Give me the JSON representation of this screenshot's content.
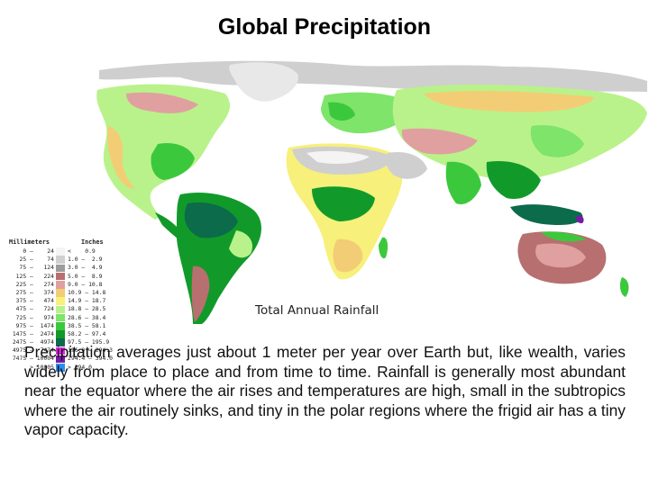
{
  "title": "Global Precipitation",
  "map": {
    "caption": "Total Annual Rainfall",
    "legend": {
      "mm_header": "Millimeters",
      "in_header": "Inches",
      "rows": [
        {
          "mm": "0 –    24",
          "inch": "<    0.9",
          "color": "#f4f4f4"
        },
        {
          "mm": "25 –    74",
          "inch": "1.0 –  2.9",
          "color": "#cfcfcf"
        },
        {
          "mm": "75 –   124",
          "inch": "3.0 –  4.9",
          "color": "#9c9c9c"
        },
        {
          "mm": "125 –   224",
          "inch": "5.0 –  8.9",
          "color": "#b86f6f"
        },
        {
          "mm": "225 –   274",
          "inch": "9.0 – 10.8",
          "color": "#e0a0a0"
        },
        {
          "mm": "275 –   374",
          "inch": "10.9 – 14.8",
          "color": "#f2cd75"
        },
        {
          "mm": "375 –   474",
          "inch": "14.9 – 18.7",
          "color": "#f7f07a"
        },
        {
          "mm": "475 –   724",
          "inch": "18.8 – 28.5",
          "color": "#b9f28a"
        },
        {
          "mm": "725 –   974",
          "inch": "28.6 – 38.4",
          "color": "#7ee46a"
        },
        {
          "mm": "975 –  1474",
          "inch": "38.5 – 58.1",
          "color": "#3cc83c"
        },
        {
          "mm": "1475 –  2474",
          "inch": "58.2 – 97.4",
          "color": "#119a2a"
        },
        {
          "mm": "2475 –  4974",
          "inch": "97.5 – 195.9",
          "color": "#0b6b4a"
        },
        {
          "mm": "4975 –  7474",
          "inch": "196.0 – 294.3",
          "color": "#f020f0"
        },
        {
          "mm": "7475 – 10004",
          "inch": "294.4 – 394.0",
          "color": "#7a1aa8"
        },
        {
          "mm": "> 10005",
          "inch": "> 394.0",
          "color": "#2a8ef0"
        }
      ]
    }
  },
  "body": "Precipitation averages just about 1 meter per year over Earth but, like wealth, varies widely from place to place and from time to time. Rainfall is generally most abundant near the equator where the air rises and temperatures are high, small in the subtropics where the air routinely sinks, and tiny in the polar regions where the frigid air has a tiny vapor capacity."
}
